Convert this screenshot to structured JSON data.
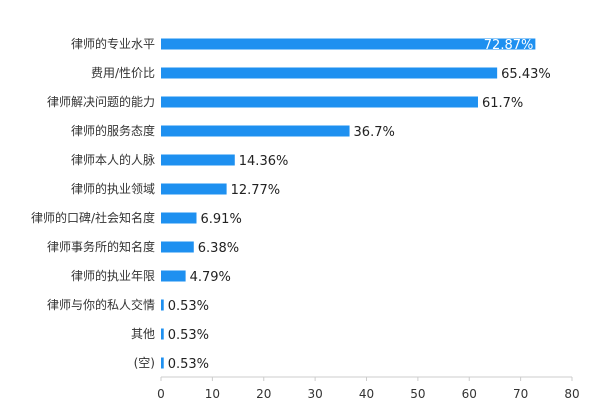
{
  "chart_data": {
    "type": "bar",
    "orientation": "horizontal",
    "categories": [
      "律师的专业水平",
      "费用/性价比",
      "律师解决问题的能力",
      "律师的服务态度",
      "律师本人的人脉",
      "律师的执业领域",
      "律师的口碑/社会知名度",
      "律师事务所的知名度",
      "律师的执业年限",
      "律师与你的私人交情",
      "其他",
      "(空)"
    ],
    "values": [
      72.87,
      65.43,
      61.7,
      36.7,
      14.36,
      12.77,
      6.91,
      6.38,
      4.79,
      0.53,
      0.53,
      0.53
    ],
    "value_labels": [
      "72.87%",
      "65.43%",
      "61.7%",
      "36.7%",
      "14.36%",
      "12.77%",
      "6.91%",
      "6.38%",
      "4.79%",
      "0.53%",
      "0.53%",
      "0.53%"
    ],
    "xticks": [
      0,
      10,
      20,
      30,
      40,
      50,
      60,
      70,
      80
    ],
    "xlim": [
      0,
      80
    ],
    "title": "",
    "xlabel": "",
    "ylabel": "",
    "grid": false,
    "legend": "none",
    "bar_color": "#1E90F0"
  }
}
